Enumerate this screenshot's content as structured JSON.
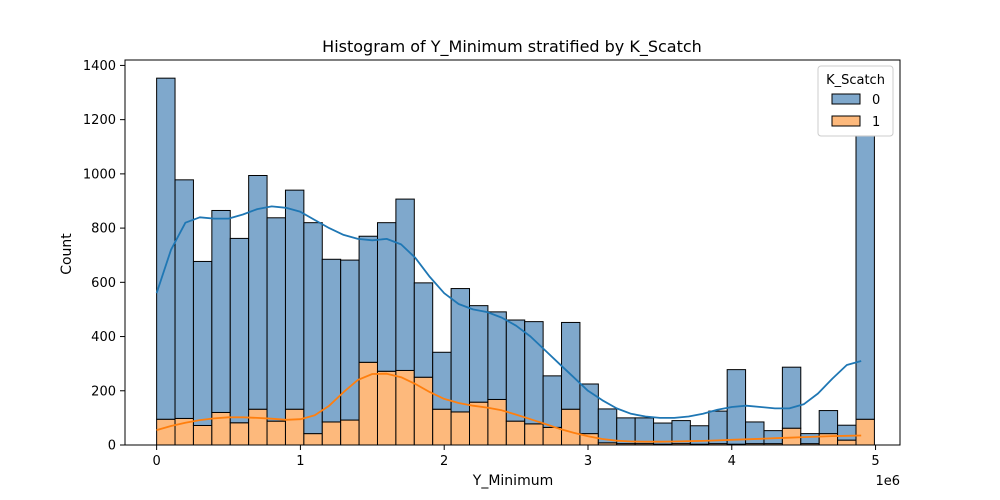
{
  "chart_data": {
    "type": "bar",
    "title": "Histogram of Y_Minimum stratified by K_Scatch",
    "xlabel": "Y_Minimum",
    "ylabel": "Count",
    "x_offset_label": "1e6",
    "xlim": [
      -0.22,
      5.17
    ],
    "ylim": [
      0,
      1420
    ],
    "x_ticks": [
      0,
      1,
      2,
      3,
      4,
      5
    ],
    "x_tick_labels": [
      "0",
      "1",
      "2",
      "3",
      "4",
      "5"
    ],
    "y_ticks": [
      0,
      200,
      400,
      600,
      800,
      1000,
      1200,
      1400
    ],
    "y_tick_labels": [
      "0",
      "200",
      "400",
      "600",
      "800",
      "1000",
      "1200",
      "1400"
    ],
    "grid": false,
    "legend": {
      "title": "K_Scatch",
      "placement": "top-right",
      "entries": [
        "0",
        "1"
      ]
    },
    "colors": {
      "series_0_fill": "#7fa8cc",
      "series_1_fill": "#fdb97c",
      "series_0_kde": "#1f77b4",
      "series_1_kde": "#ff7f0e",
      "edge": "#000000"
    },
    "bin_edges": [
      0.0,
      0.128,
      0.256,
      0.384,
      0.512,
      0.64,
      0.768,
      0.896,
      1.024,
      1.152,
      1.28,
      1.408,
      1.536,
      1.664,
      1.792,
      1.92,
      2.048,
      2.176,
      2.304,
      2.432,
      2.56,
      2.688,
      2.816,
      2.944,
      3.072,
      3.2,
      3.328,
      3.456,
      3.584,
      3.712,
      3.84,
      3.968,
      4.096,
      4.224,
      4.352,
      4.48,
      4.608,
      4.736,
      4.864
    ],
    "series": [
      {
        "name": "0",
        "values": [
          1258,
          880,
          605,
          745,
          680,
          862,
          750,
          808,
          778,
          600,
          590,
          465,
          548,
          632,
          348,
          210,
          455,
          356,
          323,
          373,
          377,
          190,
          320,
          183,
          125,
          95,
          95,
          78,
          85,
          68,
          120,
          275,
          80,
          48,
          225,
          37,
          85,
          55,
          1045
        ]
      },
      {
        "name": "1",
        "values": [
          95,
          98,
          72,
          120,
          82,
          132,
          88,
          132,
          42,
          85,
          92,
          305,
          272,
          275,
          250,
          132,
          122,
          158,
          168,
          88,
          78,
          65,
          132,
          42,
          8,
          5,
          5,
          3,
          5,
          3,
          5,
          3,
          5,
          5,
          62,
          5,
          42,
          18,
          95
        ]
      }
    ],
    "kde": [
      {
        "name": "0",
        "x": [
          0.0,
          0.1,
          0.2,
          0.3,
          0.4,
          0.5,
          0.6,
          0.7,
          0.8,
          0.9,
          1.0,
          1.1,
          1.2,
          1.3,
          1.4,
          1.5,
          1.6,
          1.7,
          1.8,
          1.9,
          2.0,
          2.1,
          2.2,
          2.3,
          2.4,
          2.5,
          2.6,
          2.7,
          2.8,
          2.9,
          3.0,
          3.1,
          3.2,
          3.3,
          3.4,
          3.5,
          3.6,
          3.7,
          3.8,
          3.9,
          4.0,
          4.1,
          4.2,
          4.3,
          4.4,
          4.5,
          4.6,
          4.7,
          4.8,
          4.9
        ],
        "y": [
          560,
          720,
          820,
          840,
          835,
          835,
          850,
          870,
          880,
          875,
          860,
          830,
          800,
          775,
          760,
          755,
          760,
          740,
          690,
          620,
          560,
          520,
          500,
          490,
          470,
          440,
          400,
          350,
          300,
          250,
          200,
          165,
          135,
          115,
          105,
          100,
          100,
          105,
          115,
          130,
          140,
          145,
          140,
          135,
          135,
          150,
          190,
          245,
          295,
          310
        ]
      },
      {
        "name": "1",
        "x": [
          0.0,
          0.1,
          0.2,
          0.3,
          0.4,
          0.5,
          0.6,
          0.7,
          0.8,
          0.9,
          1.0,
          1.1,
          1.2,
          1.3,
          1.4,
          1.5,
          1.6,
          1.7,
          1.8,
          1.9,
          2.0,
          2.1,
          2.2,
          2.3,
          2.4,
          2.5,
          2.6,
          2.7,
          2.8,
          2.9,
          3.0,
          3.1,
          3.2,
          3.3,
          3.4,
          3.5,
          3.6,
          3.7,
          3.8,
          3.9,
          4.0,
          4.1,
          4.2,
          4.3,
          4.4,
          4.5,
          4.6,
          4.7,
          4.8,
          4.9
        ],
        "y": [
          55,
          70,
          82,
          92,
          98,
          102,
          102,
          100,
          97,
          93,
          95,
          110,
          145,
          195,
          240,
          262,
          263,
          250,
          225,
          195,
          170,
          155,
          145,
          138,
          128,
          112,
          95,
          78,
          60,
          45,
          32,
          22,
          16,
          13,
          12,
          12,
          13,
          14,
          15,
          17,
          19,
          21,
          23,
          25,
          27,
          29,
          31,
          33,
          34,
          35
        ]
      }
    ]
  }
}
